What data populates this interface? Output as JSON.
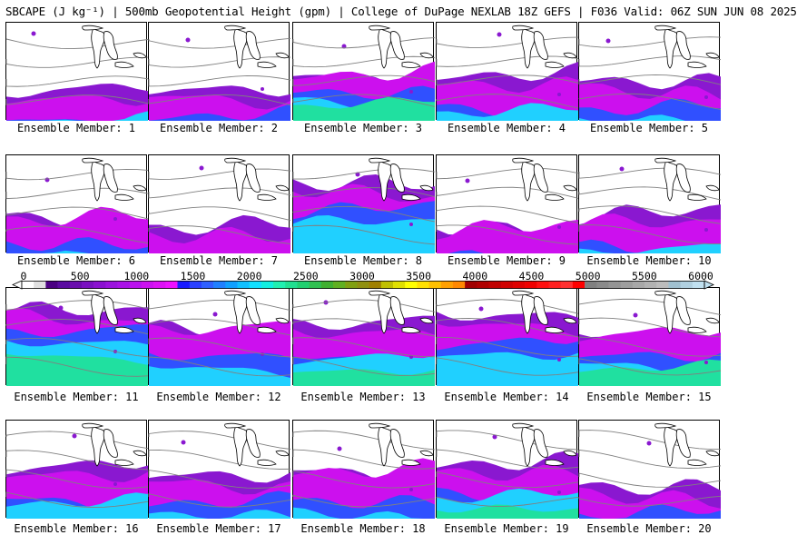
{
  "header": {
    "title": "SBCAPE (J kg⁻¹) | 500mb Geopotential Height (gpm) | College of DuPage NEXLAB 18Z GEFS | F036 Valid: 06Z SUN JUN 08 2025"
  },
  "panels": [
    {
      "label": "Ensemble Member: 1",
      "cape_top": 0.72,
      "peak": 0.46
    },
    {
      "label": "Ensemble Member: 2",
      "cape_top": 0.68,
      "peak": 0.3
    },
    {
      "label": "Ensemble Member: 3",
      "cape_top": 0.52,
      "peak": 0.62
    },
    {
      "label": "Ensemble Member: 4",
      "cape_top": 0.58,
      "peak": 0.4
    },
    {
      "label": "Ensemble Member: 5",
      "cape_top": 0.6,
      "peak": 0.32
    },
    {
      "label": "Ensemble Member: 6",
      "cape_top": 0.62,
      "peak": 0.38
    },
    {
      "label": "Ensemble Member: 7",
      "cape_top": 0.76,
      "peak": 0.2
    },
    {
      "label": "Ensemble Member: 8",
      "cape_top": 0.28,
      "peak": 0.34
    },
    {
      "label": "Ensemble Member: 9",
      "cape_top": 0.72,
      "peak": 0.3
    },
    {
      "label": "Ensemble Member: 10",
      "cape_top": 0.62,
      "peak": 0.34
    },
    {
      "label": "Ensemble Member: 11",
      "cape_top": 0.22,
      "peak": 0.44
    },
    {
      "label": "Ensemble Member: 12",
      "cape_top": 0.4,
      "peak": 0.36
    },
    {
      "label": "Ensemble Member: 13",
      "cape_top": 0.4,
      "peak": 0.42
    },
    {
      "label": "Ensemble Member: 14",
      "cape_top": 0.28,
      "peak": 0.3
    },
    {
      "label": "Ensemble Member: 15",
      "cape_top": 0.44,
      "peak": 0.48
    },
    {
      "label": "Ensemble Member: 16",
      "cape_top": 0.5,
      "peak": 0.36
    },
    {
      "label": "Ensemble Member: 17",
      "cape_top": 0.56,
      "peak": 0.3
    },
    {
      "label": "Ensemble Member: 18",
      "cape_top": 0.5,
      "peak": 0.26
    },
    {
      "label": "Ensemble Member: 19",
      "cape_top": 0.48,
      "peak": 0.48
    },
    {
      "label": "Ensemble Member: 20",
      "cape_top": 0.68,
      "peak": 0.34
    }
  ],
  "colorbar": {
    "ticks": [
      "0",
      "500",
      "1000",
      "1500",
      "2000",
      "2500",
      "3000",
      "3500",
      "4000",
      "4500",
      "5000",
      "5500",
      "6000"
    ],
    "colors": [
      "#ffffff",
      "#e0e0e0",
      "#4b0082",
      "#5a0aa0",
      "#6a0dad",
      "#7a10c0",
      "#8b10d0",
      "#9b12dd",
      "#aa10e8",
      "#bb10ee",
      "#cc10f0",
      "#dd10f5",
      "#ee10ff",
      "#1a1aff",
      "#2a40ff",
      "#3060ff",
      "#2080ff",
      "#10a0ff",
      "#10c0ff",
      "#10e0ff",
      "#10f0e0",
      "#20f0b0",
      "#20e090",
      "#20d070",
      "#30c050",
      "#40b030",
      "#60b020",
      "#80a010",
      "#909010",
      "#a08000",
      "#c0c000",
      "#e0e000",
      "#ffff00",
      "#ffe000",
      "#ffc000",
      "#ffa000",
      "#ff8800",
      "#a00000",
      "#b00000",
      "#c00000",
      "#d00000",
      "#e00000",
      "#f00000",
      "#ff1010",
      "#ff2020",
      "#ff3030",
      "#ff0000",
      "#808080",
      "#8a8a8a",
      "#949494",
      "#9e9e9e",
      "#a8a8a8",
      "#b2b2b2",
      "#bcbcbc",
      "#a0c0d0",
      "#b0d0e0",
      "#c0e0f0"
    ]
  },
  "map_colors": {
    "low": "#8a18d0",
    "mid": "#cc10ee",
    "blue": "#3050ff",
    "cyan": "#20d0ff",
    "green": "#20e0a0",
    "contour": "#808080",
    "coast": "#000000"
  }
}
